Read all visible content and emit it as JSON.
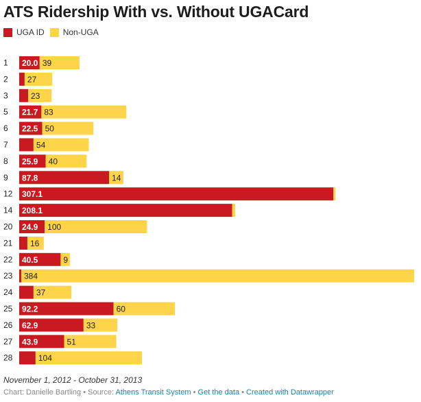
{
  "chart_data": {
    "type": "bar",
    "orientation": "horizontal",
    "stacked": true,
    "title": "ATS Ridership With vs. Without UGACard",
    "xlabel": "",
    "ylabel": "",
    "grid": false,
    "legend_position": "top-left",
    "categories": [
      "1",
      "2",
      "3",
      "5",
      "6",
      "7",
      "8",
      "9",
      "12",
      "14",
      "20",
      "21",
      "22",
      "23",
      "24",
      "25",
      "26",
      "27",
      "28"
    ],
    "series": [
      {
        "name": "UGA ID",
        "color": "#c91a22",
        "values": [
          20.0,
          5.3,
          8.7,
          21.7,
          22.5,
          14.0,
          25.9,
          87.8,
          307.1,
          208.1,
          24.9,
          8.0,
          40.5,
          2.0,
          14.0,
          92.2,
          62.9,
          43.9,
          16.0
        ],
        "labels": [
          "20.0",
          "",
          "",
          "21.7",
          "22.5",
          "",
          "25.9",
          "87.8",
          "307.1",
          "208.1",
          "24.9",
          "",
          "40.5",
          "",
          "",
          "92.2",
          "62.9",
          "43.9",
          ""
        ]
      },
      {
        "name": "Non-UGA",
        "color": "#fed44a",
        "values": [
          39,
          27,
          23,
          83,
          50,
          54,
          40,
          14,
          2,
          3,
          100,
          16,
          9,
          384,
          37,
          60,
          33,
          51,
          104
        ],
        "labels": [
          "39",
          "27",
          "23",
          "83",
          "50",
          "54",
          "40",
          "14",
          "",
          "",
          "100",
          "16",
          "9",
          "384",
          "37",
          "60",
          "33",
          "51",
          "104"
        ]
      }
    ],
    "xlim": [
      0,
      386
    ]
  },
  "legend": {
    "items": [
      {
        "label": "UGA ID",
        "color": "#c91a22"
      },
      {
        "label": "Non-UGA",
        "color": "#fed44a"
      }
    ]
  },
  "notes": "November 1, 2012 - October 31, 2013",
  "footer": {
    "chart_credit": "Chart: Danielle Bartling",
    "source_prefix": "Source:",
    "source_link": "Athens Transit System",
    "get_data": "Get the data",
    "created_with": "Created with Datawrapper",
    "separator": "•"
  }
}
